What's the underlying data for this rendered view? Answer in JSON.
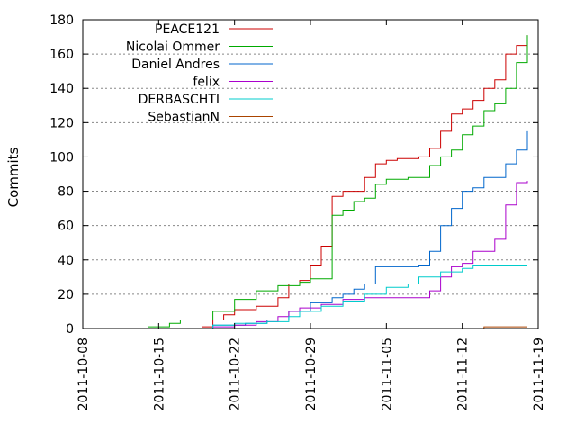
{
  "chart_data": {
    "type": "line",
    "title": "",
    "xlabel": "",
    "ylabel": "Commits",
    "x_ticks": [
      "2011-10-08",
      "2011-10-15",
      "2011-10-22",
      "2011-10-29",
      "2011-11-05",
      "2011-11-12",
      "2011-11-19"
    ],
    "xlim": [
      "2011-10-08",
      "2011-11-19"
    ],
    "ylim": [
      0,
      180
    ],
    "y_ticks": [
      0,
      20,
      40,
      60,
      80,
      100,
      120,
      140,
      160,
      180
    ],
    "grid": true,
    "legend_position": "top-left",
    "series": [
      {
        "name": "PEACE121",
        "color": "#cc0000",
        "points": [
          [
            "2011-10-15",
            0
          ],
          [
            "2011-10-19",
            1
          ],
          [
            "2011-10-20",
            5
          ],
          [
            "2011-10-21",
            8
          ],
          [
            "2011-10-22",
            11
          ],
          [
            "2011-10-24",
            13
          ],
          [
            "2011-10-26",
            18
          ],
          [
            "2011-10-27",
            26
          ],
          [
            "2011-10-28",
            28
          ],
          [
            "2011-10-29",
            37
          ],
          [
            "2011-10-30",
            48
          ],
          [
            "2011-10-31",
            77
          ],
          [
            "2011-11-01",
            80
          ],
          [
            "2011-11-02",
            80
          ],
          [
            "2011-11-03",
            88
          ],
          [
            "2011-11-04",
            96
          ],
          [
            "2011-11-05",
            98
          ],
          [
            "2011-11-06",
            99
          ],
          [
            "2011-11-07",
            99
          ],
          [
            "2011-11-08",
            100
          ],
          [
            "2011-11-09",
            105
          ],
          [
            "2011-11-10",
            115
          ],
          [
            "2011-11-11",
            125
          ],
          [
            "2011-11-12",
            128
          ],
          [
            "2011-11-13",
            133
          ],
          [
            "2011-11-14",
            140
          ],
          [
            "2011-11-15",
            145
          ],
          [
            "2011-11-16",
            160
          ],
          [
            "2011-11-17",
            165
          ],
          [
            "2011-11-18",
            171
          ]
        ]
      },
      {
        "name": "Nicolai Ommer",
        "color": "#00aa00",
        "points": [
          [
            "2011-10-14",
            1
          ],
          [
            "2011-10-16",
            3
          ],
          [
            "2011-10-17",
            5
          ],
          [
            "2011-10-19",
            5
          ],
          [
            "2011-10-20",
            10
          ],
          [
            "2011-10-22",
            17
          ],
          [
            "2011-10-24",
            22
          ],
          [
            "2011-10-26",
            25
          ],
          [
            "2011-10-28",
            27
          ],
          [
            "2011-10-29",
            29
          ],
          [
            "2011-10-31",
            66
          ],
          [
            "2011-11-01",
            69
          ],
          [
            "2011-11-02",
            74
          ],
          [
            "2011-11-03",
            76
          ],
          [
            "2011-11-04",
            84
          ],
          [
            "2011-11-05",
            87
          ],
          [
            "2011-11-07",
            88
          ],
          [
            "2011-11-08",
            88
          ],
          [
            "2011-11-09",
            95
          ],
          [
            "2011-11-10",
            100
          ],
          [
            "2011-11-11",
            104
          ],
          [
            "2011-11-12",
            113
          ],
          [
            "2011-11-13",
            118
          ],
          [
            "2011-11-14",
            127
          ],
          [
            "2011-11-15",
            131
          ],
          [
            "2011-11-16",
            140
          ],
          [
            "2011-11-17",
            155
          ],
          [
            "2011-11-18",
            171
          ]
        ]
      },
      {
        "name": "Daniel Andres",
        "color": "#0066cc",
        "points": [
          [
            "2011-10-17",
            0
          ],
          [
            "2011-10-20",
            2
          ],
          [
            "2011-10-23",
            3
          ],
          [
            "2011-10-25",
            5
          ],
          [
            "2011-10-27",
            10
          ],
          [
            "2011-10-29",
            15
          ],
          [
            "2011-10-31",
            18
          ],
          [
            "2011-11-01",
            20
          ],
          [
            "2011-11-02",
            23
          ],
          [
            "2011-11-03",
            26
          ],
          [
            "2011-11-04",
            36
          ],
          [
            "2011-11-06",
            36
          ],
          [
            "2011-11-08",
            37
          ],
          [
            "2011-11-09",
            45
          ],
          [
            "2011-11-10",
            60
          ],
          [
            "2011-11-11",
            70
          ],
          [
            "2011-11-12",
            80
          ],
          [
            "2011-11-13",
            82
          ],
          [
            "2011-11-14",
            88
          ],
          [
            "2011-11-15",
            88
          ],
          [
            "2011-11-16",
            96
          ],
          [
            "2011-11-17",
            104
          ],
          [
            "2011-11-18",
            115
          ]
        ]
      },
      {
        "name": "felix",
        "color": "#aa00cc",
        "points": [
          [
            "2011-10-17",
            0
          ],
          [
            "2011-10-20",
            1
          ],
          [
            "2011-10-22",
            2
          ],
          [
            "2011-10-24",
            4
          ],
          [
            "2011-10-26",
            7
          ],
          [
            "2011-10-27",
            10
          ],
          [
            "2011-10-28",
            12
          ],
          [
            "2011-10-30",
            14
          ],
          [
            "2011-11-01",
            17
          ],
          [
            "2011-11-03",
            18
          ],
          [
            "2011-11-06",
            18
          ],
          [
            "2011-11-08",
            18
          ],
          [
            "2011-11-09",
            22
          ],
          [
            "2011-11-10",
            30
          ],
          [
            "2011-11-11",
            36
          ],
          [
            "2011-11-12",
            38
          ],
          [
            "2011-11-13",
            45
          ],
          [
            "2011-11-14",
            45
          ],
          [
            "2011-11-15",
            52
          ],
          [
            "2011-11-16",
            72
          ],
          [
            "2011-11-17",
            85
          ],
          [
            "2011-11-18",
            86
          ]
        ]
      },
      {
        "name": "DERBASCHTI",
        "color": "#00cccc",
        "points": [
          [
            "2011-10-17",
            0
          ],
          [
            "2011-10-20",
            2
          ],
          [
            "2011-10-22",
            3
          ],
          [
            "2011-10-25",
            4
          ],
          [
            "2011-10-27",
            7
          ],
          [
            "2011-10-28",
            10
          ],
          [
            "2011-10-30",
            13
          ],
          [
            "2011-11-01",
            16
          ],
          [
            "2011-11-03",
            20
          ],
          [
            "2011-11-05",
            24
          ],
          [
            "2011-11-07",
            26
          ],
          [
            "2011-11-08",
            30
          ],
          [
            "2011-11-10",
            33
          ],
          [
            "2011-11-12",
            35
          ],
          [
            "2011-11-13",
            37
          ],
          [
            "2011-11-18",
            37
          ]
        ]
      },
      {
        "name": "SebastianN",
        "color": "#aa4400",
        "points": [
          [
            "2011-11-13",
            0
          ],
          [
            "2011-11-14",
            1
          ],
          [
            "2011-11-18",
            1
          ]
        ]
      }
    ]
  }
}
